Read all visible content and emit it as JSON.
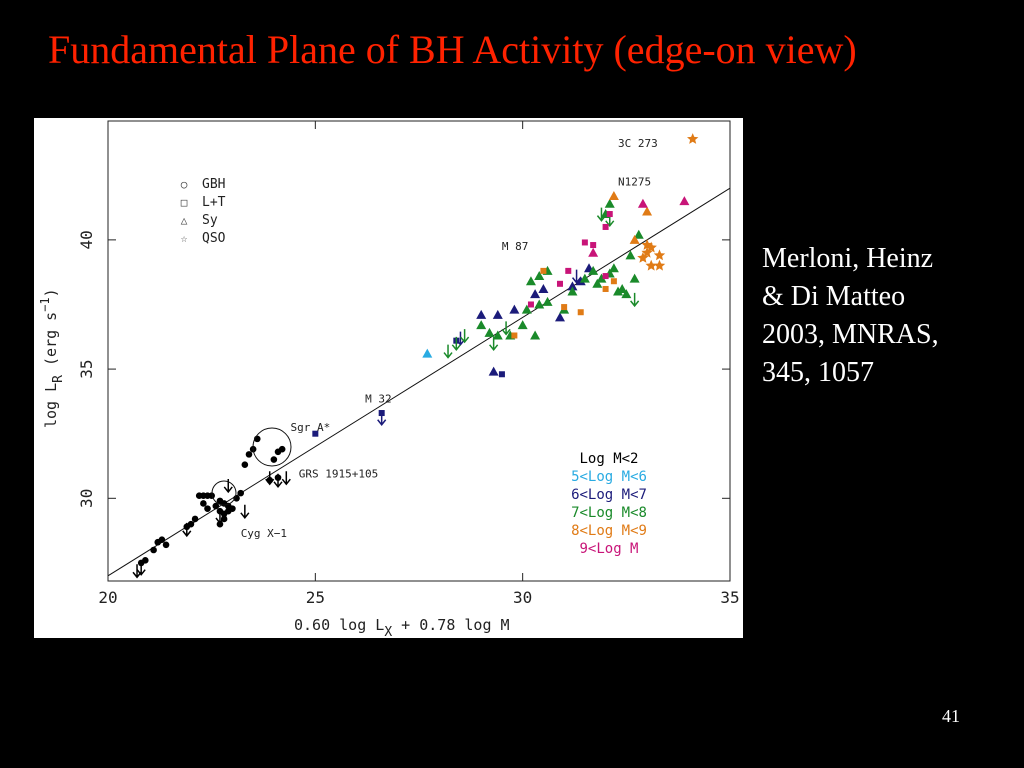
{
  "slide": {
    "title": "Fundamental Plane of BH Activity (edge-on view)",
    "citation_lines": [
      "Merloni, Heinz",
      "& Di Matteo",
      "2003, MNRAS,",
      "345, 1057"
    ],
    "slide_number": "41"
  },
  "chart_data": {
    "type": "scatter",
    "xlabel": "0.60 log L",
    "xlabel_sub": "X",
    "xlabel_rest": " + 0.78 log M",
    "ylabel": "log L",
    "ylabel_sub": "R",
    "ylabel_rest": " (erg s",
    "ylabel_sup": "−1",
    "ylabel_close": ")",
    "xlim": [
      20,
      35
    ],
    "ylim": [
      26.8,
      44.6
    ],
    "xticks": [
      20,
      25,
      30,
      35
    ],
    "yticks": [
      30,
      35,
      40
    ],
    "grid": false,
    "fit_line": {
      "x": [
        20,
        35
      ],
      "y": [
        27,
        42
      ]
    },
    "shape_legend": [
      {
        "symbol": "○",
        "label": "GBH"
      },
      {
        "symbol": "□",
        "label": "L+T"
      },
      {
        "symbol": "△",
        "label": "Sy"
      },
      {
        "symbol": "☆",
        "label": "QSO"
      }
    ],
    "color_legend": [
      {
        "label": "Log M<2",
        "color": "#000000"
      },
      {
        "label": "5<Log M<6",
        "color": "#29abe2"
      },
      {
        "label": "6<Log M<7",
        "color": "#1b1b7a"
      },
      {
        "label": "7<Log M<8",
        "color": "#1a8a2a"
      },
      {
        "label": "8<Log M<9",
        "color": "#e07b16"
      },
      {
        "label": "9<Log M",
        "color": "#c81478"
      }
    ],
    "annotations": [
      {
        "text": "3C 273",
        "x": 32.3,
        "y": 43.6
      },
      {
        "text": "N1275",
        "x": 32.3,
        "y": 42.1
      },
      {
        "text": "M 87",
        "x": 29.5,
        "y": 39.6
      },
      {
        "text": "M 32",
        "x": 26.2,
        "y": 33.7
      },
      {
        "text": "Sgr A*",
        "x": 24.4,
        "y": 32.6
      },
      {
        "text": "GRS 1915+105",
        "x": 24.6,
        "y": 30.8
      },
      {
        "text": "Cyg X−1",
        "x": 23.2,
        "y": 28.5
      }
    ],
    "series": [
      {
        "name": "GBH",
        "shape": "circle",
        "color": "#000000",
        "points": [
          [
            20.8,
            27.5
          ],
          [
            20.9,
            27.6
          ],
          [
            21.1,
            28.0
          ],
          [
            21.2,
            28.3
          ],
          [
            21.3,
            28.4
          ],
          [
            21.4,
            28.2
          ],
          [
            21.9,
            28.9
          ],
          [
            22.0,
            29.0
          ],
          [
            22.1,
            29.2
          ],
          [
            22.2,
            30.1
          ],
          [
            22.3,
            30.1
          ],
          [
            22.4,
            30.1
          ],
          [
            22.5,
            30.1
          ],
          [
            22.3,
            29.8
          ],
          [
            22.4,
            29.6
          ],
          [
            22.6,
            29.7
          ],
          [
            22.7,
            29.9
          ],
          [
            22.8,
            29.8
          ],
          [
            22.7,
            29.5
          ],
          [
            22.8,
            29.4
          ],
          [
            22.9,
            29.7
          ],
          [
            22.8,
            29.2
          ],
          [
            22.7,
            29.0
          ],
          [
            22.9,
            29.5
          ],
          [
            23.0,
            29.6
          ],
          [
            23.1,
            30.0
          ],
          [
            23.2,
            30.2
          ],
          [
            23.3,
            31.3
          ],
          [
            23.4,
            31.7
          ],
          [
            23.5,
            31.9
          ],
          [
            23.6,
            32.3
          ],
          [
            24.0,
            31.5
          ],
          [
            24.1,
            31.8
          ],
          [
            24.2,
            31.9
          ],
          [
            23.9,
            30.7
          ],
          [
            24.1,
            30.8
          ]
        ]
      },
      {
        "name": "GBH",
        "shape": "arrow",
        "color": "#000000",
        "points": [
          [
            20.7,
            27.1
          ],
          [
            20.8,
            27.2
          ],
          [
            21.9,
            28.7
          ],
          [
            22.7,
            29.2
          ],
          [
            23.3,
            29.4
          ],
          [
            22.9,
            30.4
          ],
          [
            23.9,
            30.7
          ],
          [
            24.1,
            30.6
          ],
          [
            24.3,
            30.7
          ]
        ]
      },
      {
        "name": "5<Log M<6",
        "shape": "triangle",
        "color": "#29abe2",
        "points": [
          [
            27.7,
            35.6
          ]
        ]
      },
      {
        "name": "6<Log M<7",
        "shape": "triangle",
        "color": "#1b1b7a",
        "points": [
          [
            29.0,
            37.1
          ],
          [
            29.4,
            37.1
          ],
          [
            29.8,
            37.3
          ],
          [
            29.3,
            34.9
          ],
          [
            30.3,
            37.9
          ],
          [
            30.5,
            38.1
          ],
          [
            30.9,
            37.0
          ],
          [
            31.2,
            38.2
          ],
          [
            31.4,
            38.4
          ],
          [
            31.6,
            38.9
          ]
        ]
      },
      {
        "name": "6<Log M<7",
        "shape": "square",
        "color": "#1b1b7a",
        "points": [
          [
            25.0,
            32.5
          ],
          [
            26.6,
            33.3
          ],
          [
            28.4,
            36.1
          ],
          [
            29.5,
            34.8
          ]
        ]
      },
      {
        "name": "6<Log M<7",
        "shape": "arrow",
        "color": "#1b1b7a",
        "points": [
          [
            26.6,
            33.0
          ],
          [
            28.5,
            36.1
          ],
          [
            31.3,
            38.5
          ]
        ]
      },
      {
        "name": "7<Log M<8",
        "shape": "triangle",
        "color": "#1a8a2a",
        "points": [
          [
            29.0,
            36.7
          ],
          [
            29.4,
            36.3
          ],
          [
            29.7,
            36.3
          ],
          [
            30.0,
            36.7
          ],
          [
            30.1,
            37.3
          ],
          [
            30.3,
            36.3
          ],
          [
            30.2,
            38.4
          ],
          [
            30.4,
            38.6
          ],
          [
            30.6,
            38.8
          ],
          [
            30.4,
            37.5
          ],
          [
            30.6,
            37.6
          ],
          [
            31.0,
            37.3
          ],
          [
            31.2,
            38.0
          ],
          [
            31.5,
            38.5
          ],
          [
            31.7,
            38.8
          ],
          [
            31.8,
            38.3
          ],
          [
            31.9,
            38.5
          ],
          [
            32.0,
            41.0
          ],
          [
            32.1,
            41.4
          ],
          [
            32.1,
            38.7
          ],
          [
            32.2,
            38.9
          ],
          [
            32.3,
            38.0
          ],
          [
            32.4,
            38.1
          ],
          [
            32.6,
            39.4
          ],
          [
            32.7,
            38.5
          ],
          [
            32.8,
            40.2
          ],
          [
            32.5,
            37.9
          ],
          [
            29.2,
            36.4
          ]
        ]
      },
      {
        "name": "7<Log M<8",
        "shape": "arrow",
        "color": "#1a8a2a",
        "points": [
          [
            28.2,
            35.6
          ],
          [
            28.4,
            35.9
          ],
          [
            28.6,
            36.2
          ],
          [
            29.3,
            35.9
          ],
          [
            29.6,
            36.5
          ],
          [
            31.9,
            40.9
          ],
          [
            32.1,
            40.7
          ],
          [
            32.7,
            37.6
          ]
        ]
      },
      {
        "name": "8<Log M<9",
        "shape": "square",
        "color": "#e07b16",
        "points": [
          [
            29.8,
            36.3
          ],
          [
            30.5,
            38.8
          ],
          [
            31.0,
            37.4
          ],
          [
            31.4,
            37.2
          ],
          [
            32.0,
            38.1
          ],
          [
            32.2,
            38.4
          ]
        ]
      },
      {
        "name": "8<Log M<9",
        "shape": "triangle",
        "color": "#e07b16",
        "points": [
          [
            32.2,
            41.7
          ],
          [
            33.0,
            41.1
          ],
          [
            32.7,
            40.0
          ]
        ]
      },
      {
        "name": "8<Log M<9",
        "shape": "star",
        "color": "#e07b16",
        "points": [
          [
            34.1,
            43.9
          ],
          [
            33.0,
            39.8
          ],
          [
            33.0,
            39.5
          ],
          [
            33.1,
            39.0
          ],
          [
            33.3,
            39.0
          ],
          [
            33.3,
            39.4
          ],
          [
            32.9,
            39.3
          ],
          [
            33.1,
            39.7
          ]
        ]
      },
      {
        "name": "9<Log M",
        "shape": "square",
        "color": "#c81478",
        "points": [
          [
            30.2,
            37.5
          ],
          [
            31.1,
            38.8
          ],
          [
            31.5,
            39.9
          ],
          [
            31.7,
            39.8
          ],
          [
            32.0,
            40.5
          ],
          [
            32.1,
            41.0
          ],
          [
            32.0,
            38.6
          ],
          [
            30.9,
            38.3
          ]
        ]
      },
      {
        "name": "9<Log M",
        "shape": "triangle",
        "color": "#c81478",
        "points": [
          [
            33.9,
            41.5
          ],
          [
            31.7,
            39.5
          ],
          [
            32.9,
            41.4
          ]
        ]
      }
    ]
  }
}
